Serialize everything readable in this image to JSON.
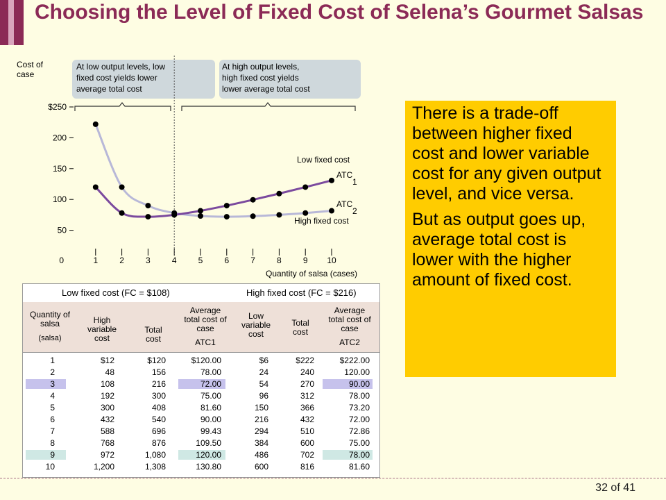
{
  "title": "Choosing the Level of Fixed Cost of Selena’s Gourmet Salsas",
  "page_number": "32 of 41",
  "right_panel": {
    "paragraph1": "There is a trade-off between higher fixed cost and lower variable cost for any given output level, and vice versa.",
    "paragraph2": "But as output goes up, average total cost is lower with the higher amount of fixed cost."
  },
  "chart_data": {
    "type": "line",
    "ylabel": "Cost of case",
    "xlabel": "Quantity of salsa (cases)",
    "y_ticks": [
      "$250",
      "200",
      "150",
      "100",
      "50",
      "0"
    ],
    "x_ticks": [
      "1",
      "2",
      "3",
      "4",
      "5",
      "6",
      "7",
      "8",
      "9",
      "10"
    ],
    "x": [
      1,
      2,
      3,
      4,
      5,
      6,
      7,
      8,
      9,
      10
    ],
    "ylim": [
      0,
      250
    ],
    "series": [
      {
        "name": "ATC1",
        "label": "Low fixed cost",
        "values": [
          120,
          78,
          72,
          75,
          81.6,
          90,
          99.43,
          109.5,
          120,
          130.8
        ],
        "color": "#7b4a9e"
      },
      {
        "name": "ATC2",
        "label": "High fixed cost",
        "values": [
          222,
          120,
          90,
          78,
          73.2,
          72,
          72.86,
          75,
          78,
          81.6
        ],
        "color": "#b8b8d8"
      }
    ],
    "divider_x": 4,
    "annotation_left": "At low output levels, low fixed cost yields lower average total cost",
    "annotation_right": "At high output levels, high fixed cost yields lower average total cost",
    "label_atc1": "ATC",
    "label_atc1_sub": "1",
    "label_atc2": "ATC",
    "label_atc2_sub": "2"
  },
  "table": {
    "group_low": "Low fixed cost (FC = $108)",
    "group_high": "High fixed cost (FC = $216)",
    "headers": {
      "quantity": "Quantity of salsa",
      "quantity_unit": "(salsa)",
      "high_vc": "High variable cost",
      "tc1": "Total cost",
      "atc1": "Average total cost of case",
      "atc1_sym": "ATC1",
      "low_vc": "Low variable cost",
      "tc2": "Total cost",
      "atc2": "Average total cost of case",
      "atc2_sym": "ATC2"
    },
    "quantity": [
      "1",
      "2",
      "3",
      "4",
      "5",
      "6",
      "7",
      "8",
      "9",
      "10"
    ],
    "high_vc": [
      "$12",
      "48",
      "108",
      "192",
      "300",
      "432",
      "588",
      "768",
      "972",
      "1,200"
    ],
    "tc1": [
      "$120",
      "156",
      "216",
      "300",
      "408",
      "540",
      "696",
      "876",
      "1,080",
      "1,308"
    ],
    "atc1": [
      "$120.00",
      "78.00",
      "72.00",
      "75.00",
      "81.60",
      "90.00",
      "99.43",
      "109.50",
      "120.00",
      "130.80"
    ],
    "low_vc": [
      "$6",
      "24",
      "54",
      "96",
      "150",
      "216",
      "294",
      "384",
      "486",
      "600"
    ],
    "tc2": [
      "$222",
      "240",
      "270",
      "312",
      "366",
      "432",
      "510",
      "600",
      "702",
      "816"
    ],
    "atc2": [
      "$222.00",
      "120.00",
      "90.00",
      "78.00",
      "73.20",
      "72.00",
      "72.86",
      "75.00",
      "78.00",
      "81.60"
    ],
    "highlight_purple": "#c6c2ec",
    "highlight_teal": "#cfe8e4"
  }
}
